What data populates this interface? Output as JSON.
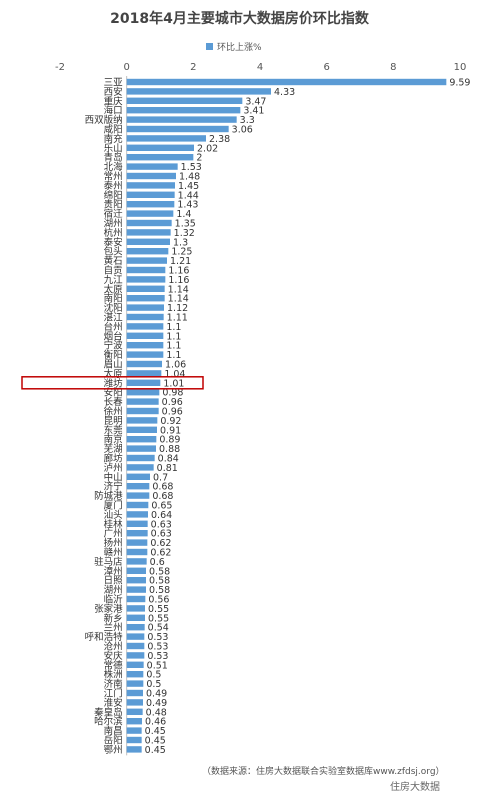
{
  "chart_data": {
    "type": "bar",
    "orientation": "horizontal",
    "title": "2018年4月主要城市大数据房价环比指数",
    "xlim": [
      -2,
      10
    ],
    "xticks": [
      -2,
      0,
      2,
      4,
      6,
      8,
      10
    ],
    "series": [
      {
        "name": "环比上涨%",
        "color": "#5b9bd5"
      }
    ],
    "categories": [
      "三亚",
      "西安",
      "重庆",
      "海口",
      "西双版纳",
      "咸阳",
      "南充",
      "乐山",
      "青岛",
      "北海",
      "常州",
      "泰州",
      "绵阳",
      "贵阳",
      "宿迁",
      "湖州",
      "杭州",
      "泰安",
      "包头",
      "黄石",
      "自贡",
      "九江",
      "太原",
      "南阳",
      "沈阳",
      "湛江",
      "台州",
      "烟台",
      "宁波",
      "衡阳",
      "眉山",
      "太原",
      "潍坊",
      "安阳",
      "长春",
      "徐州",
      "昆明",
      "东莞",
      "南京",
      "芜湖",
      "廊坊",
      "泸州",
      "中山",
      "济宁",
      "防城港",
      "厦门",
      "汕头",
      "桂林",
      "广州",
      "扬州",
      "赣州",
      "驻马店",
      "漳州",
      "日照",
      "湖州",
      "临沂",
      "张家港",
      "新乡",
      "兰州",
      "呼和浩特",
      "沧州",
      "安庆",
      "常德",
      "株洲",
      "济南",
      "江门",
      "淮安",
      "秦皇岛",
      "哈尔滨",
      "南昌",
      "岳阳",
      "鄂州"
    ],
    "values": [
      9.59,
      4.33,
      3.47,
      3.41,
      3.3,
      3.06,
      2.38,
      2.02,
      2,
      1.53,
      1.48,
      1.45,
      1.44,
      1.43,
      1.4,
      1.35,
      1.32,
      1.3,
      1.25,
      1.21,
      1.16,
      1.16,
      1.14,
      1.14,
      1.12,
      1.11,
      1.1,
      1.1,
      1.1,
      1.1,
      1.06,
      1.04,
      1.01,
      0.98,
      0.96,
      0.96,
      0.92,
      0.91,
      0.89,
      0.88,
      0.84,
      0.81,
      0.7,
      0.68,
      0.68,
      0.65,
      0.64,
      0.63,
      0.63,
      0.62,
      0.62,
      0.6,
      0.58,
      0.58,
      0.58,
      0.56,
      0.55,
      0.55,
      0.54,
      0.53,
      0.53,
      0.53,
      0.51,
      0.5,
      0.5,
      0.49,
      0.49,
      0.48,
      0.46,
      0.45,
      0.45,
      0.45
    ],
    "highlight_index": 32,
    "highlight_color": "#c00000",
    "grid": false
  },
  "source_note": "（数据来源：住房大数据联合实验室数据库www.zfdsj.org）",
  "watermark": "住房大数据"
}
